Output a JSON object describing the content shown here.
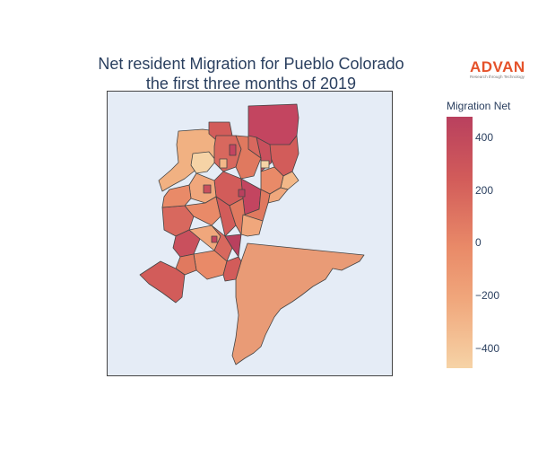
{
  "title_line1": "Net resident Migration for Pueblo Colorado",
  "title_line2": "the first three months of 2019",
  "logo": {
    "name": "ADVAN",
    "tagline": "Research through Technology",
    "color": "#e5522a"
  },
  "colorbar": {
    "title": "Migration Net",
    "ticks": [
      "400",
      "200",
      "0",
      "−200",
      "−400"
    ],
    "tick_values": [
      400,
      200,
      0,
      -200,
      -400
    ],
    "range": [
      -470,
      470
    ],
    "colorscale": [
      "#f6d3a6",
      "#f0a77c",
      "#e98a68",
      "#d25c5a",
      "#b9405e"
    ]
  },
  "map": {
    "background": "#e5ecf6",
    "region_outline": "#444444"
  }
}
